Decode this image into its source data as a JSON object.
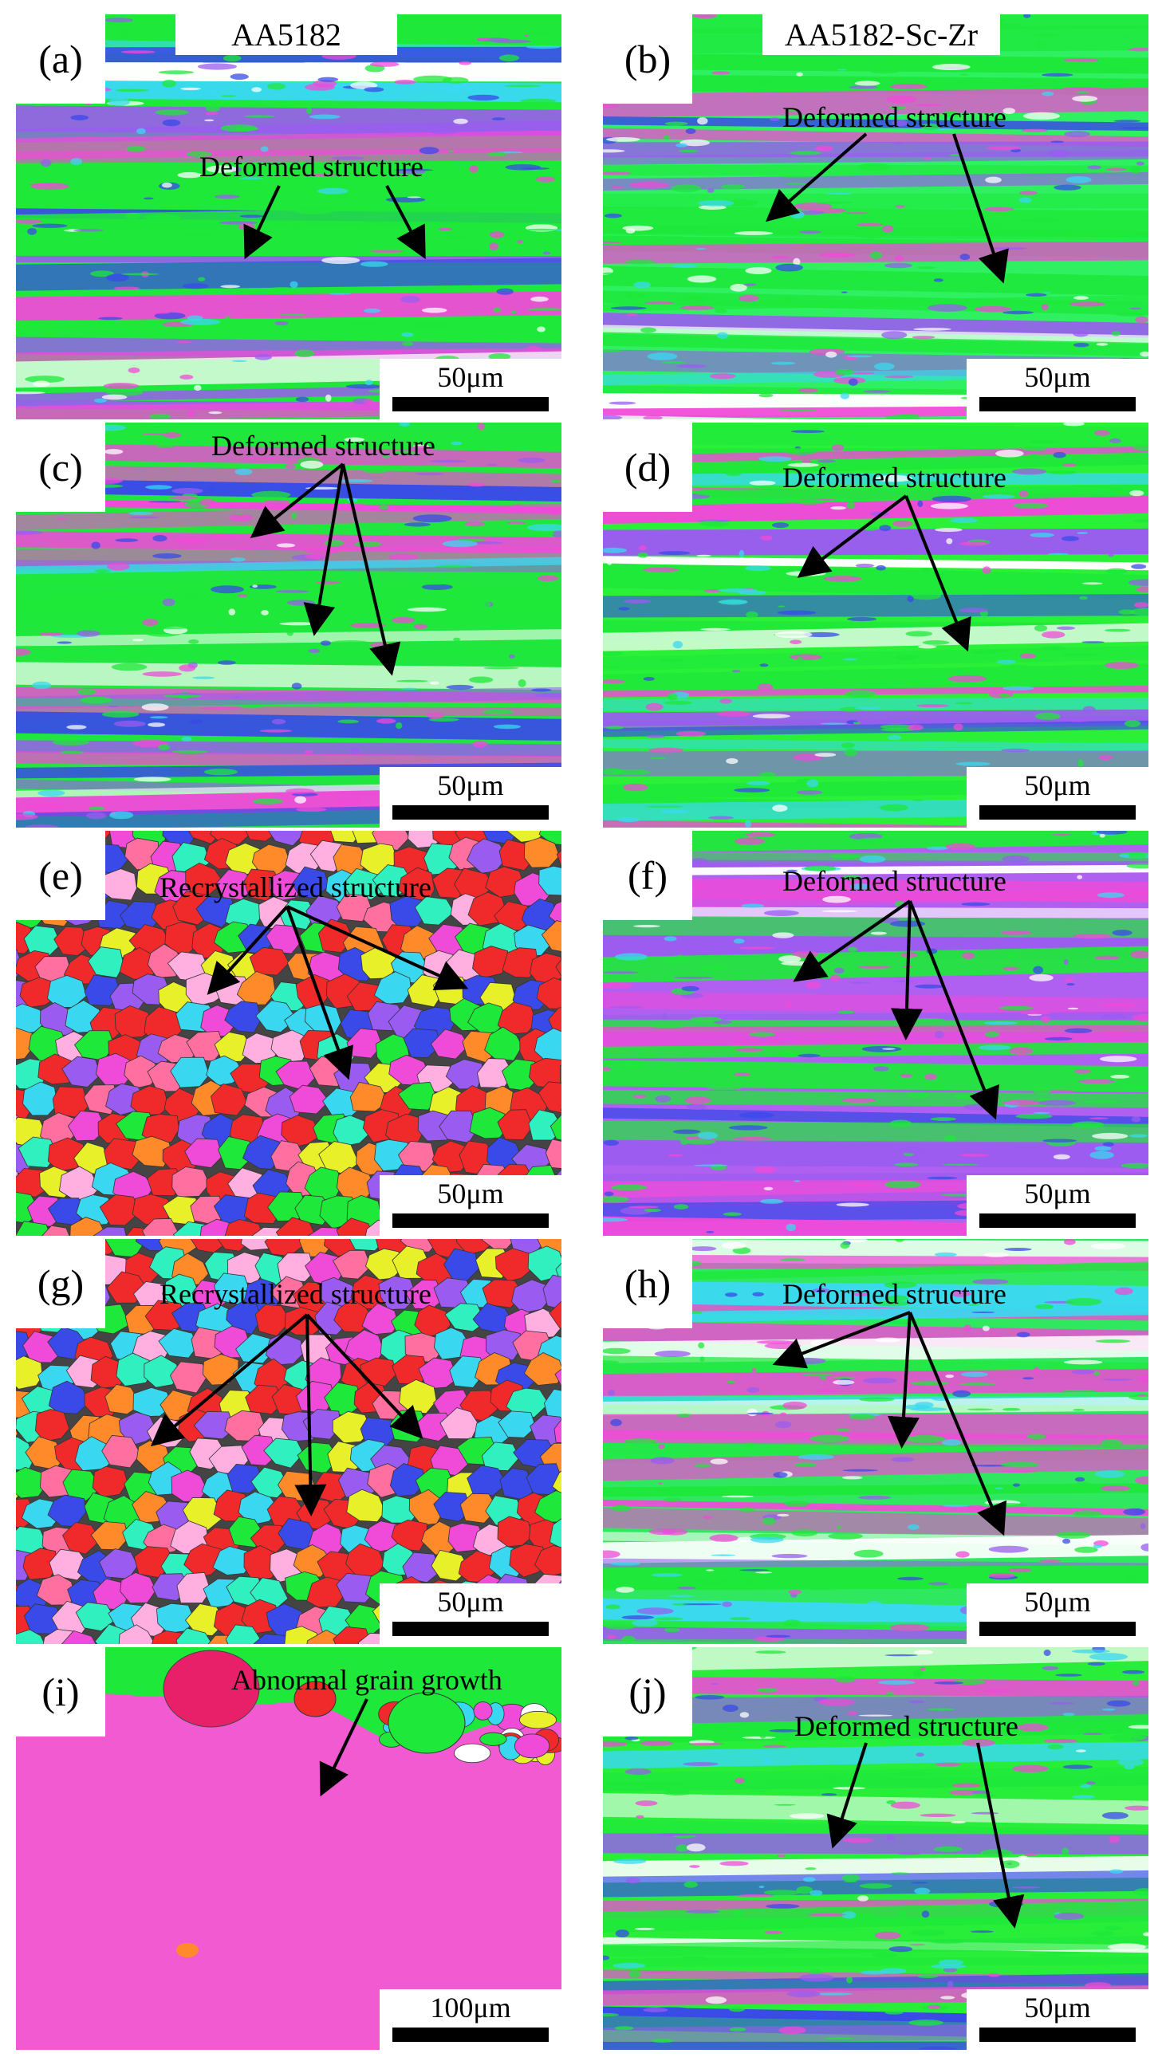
{
  "columns": {
    "left_title": "AA5182",
    "right_title": "AA5182-Sc-Zr"
  },
  "panels": [
    {
      "id": "a",
      "label": "(a)",
      "annotation": "Deformed structure",
      "scale": "50μm",
      "texture": "deformed",
      "base_color": "#1ee83a"
    },
    {
      "id": "b",
      "label": "(b)",
      "annotation": "Deformed structure",
      "scale": "50μm",
      "texture": "deformed",
      "base_color": "#2ef060"
    },
    {
      "id": "c",
      "label": "(c)",
      "annotation": "Deformed structure",
      "scale": "50μm",
      "texture": "deformed",
      "base_color": "#22e640"
    },
    {
      "id": "d",
      "label": "(d)",
      "annotation": "Deformed structure",
      "scale": "50μm",
      "texture": "deformed",
      "base_color": "#2af038"
    },
    {
      "id": "e",
      "label": "(e)",
      "annotation": "Recrystallized structure",
      "scale": "50μm",
      "texture": "recrystallized",
      "base_color": "#ff3030"
    },
    {
      "id": "f",
      "label": "(f)",
      "annotation": "Deformed structure",
      "scale": "50μm",
      "texture": "deformed",
      "base_color": "#b060f0"
    },
    {
      "id": "g",
      "label": "(g)",
      "annotation": "Recrystallized structure",
      "scale": "50μm",
      "texture": "recrystallized",
      "base_color": "#ff3a3a"
    },
    {
      "id": "h",
      "label": "(h)",
      "annotation": "Deformed structure",
      "scale": "50μm",
      "texture": "deformed",
      "base_color": "#30e860"
    },
    {
      "id": "i",
      "label": "(i)",
      "annotation": "Abnormal grain growth",
      "scale": "100μm",
      "texture": "abnormal",
      "base_color": "#f25ad2"
    },
    {
      "id": "j",
      "label": "(j)",
      "annotation": "Deformed structure",
      "scale": "50μm",
      "texture": "deformed",
      "base_color": "#28ee3a"
    }
  ],
  "colors": {
    "green": "#1ee83a",
    "magenta": "#f04ad8",
    "violet": "#9a5cf0",
    "blue": "#3a4ae8",
    "cyan": "#3ad8f0",
    "red": "#f02a2a",
    "orange": "#ff8a2a",
    "yellow": "#e8f02a",
    "pink": "#f25ad2"
  }
}
